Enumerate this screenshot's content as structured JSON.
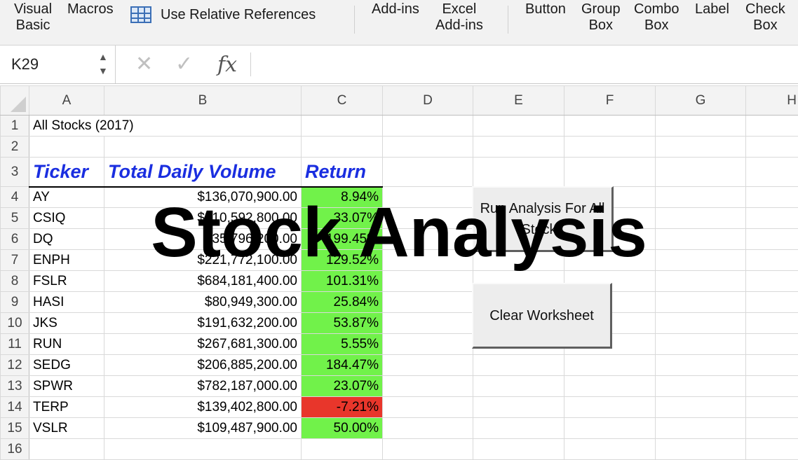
{
  "ribbon": {
    "visual_basic_line1": "Visual",
    "visual_basic_line2": "Basic",
    "macros": "Macros",
    "relative_references": "Use Relative References",
    "addins": "Add-ins",
    "excel_addins_line1": "Excel",
    "excel_addins_line2": "Add-ins",
    "button": "Button",
    "group_box_line1": "Group",
    "group_box_line2": "Box",
    "combo_box_line1": "Combo",
    "combo_box_line2": "Box",
    "label": "Label",
    "check_box_line1": "Check",
    "check_box_line2": "Box"
  },
  "formula_bar": {
    "name_box": "K29",
    "name_box_arrows_up": "▲",
    "name_box_arrows_down": "▼",
    "cancel_icon": "✕",
    "confirm_icon": "✓",
    "fx_label": "fx",
    "formula": ""
  },
  "columns": [
    "A",
    "B",
    "C",
    "D",
    "E",
    "F",
    "G",
    "H"
  ],
  "sheet": {
    "a1": "All Stocks (2017)",
    "headers": {
      "ticker": "Ticker",
      "volume": "Total Daily Volume",
      "return": "Return"
    },
    "rows": [
      {
        "row": "4",
        "ticker": "AY",
        "volume": "$136,070,900.00",
        "ret": "8.94%",
        "status": "positive"
      },
      {
        "row": "5",
        "ticker": "CSIQ",
        "volume": "$310,592,800.00",
        "ret": "33.07%",
        "status": "positive"
      },
      {
        "row": "6",
        "ticker": "DQ",
        "volume": "$35,796,200.00",
        "ret": "199.45%",
        "status": "positive"
      },
      {
        "row": "7",
        "ticker": "ENPH",
        "volume": "$221,772,100.00",
        "ret": "129.52%",
        "status": "positive"
      },
      {
        "row": "8",
        "ticker": "FSLR",
        "volume": "$684,181,400.00",
        "ret": "101.31%",
        "status": "positive"
      },
      {
        "row": "9",
        "ticker": "HASI",
        "volume": "$80,949,300.00",
        "ret": "25.84%",
        "status": "positive"
      },
      {
        "row": "10",
        "ticker": "JKS",
        "volume": "$191,632,200.00",
        "ret": "53.87%",
        "status": "positive"
      },
      {
        "row": "11",
        "ticker": "RUN",
        "volume": "$267,681,300.00",
        "ret": "5.55%",
        "status": "positive"
      },
      {
        "row": "12",
        "ticker": "SEDG",
        "volume": "$206,885,200.00",
        "ret": "184.47%",
        "status": "positive"
      },
      {
        "row": "13",
        "ticker": "SPWR",
        "volume": "$782,187,000.00",
        "ret": "23.07%",
        "status": "positive"
      },
      {
        "row": "14",
        "ticker": "TERP",
        "volume": "$139,402,800.00",
        "ret": "-7.21%",
        "status": "negative"
      },
      {
        "row": "15",
        "ticker": "VSLR",
        "volume": "$109,487,900.00",
        "ret": "50.00%",
        "status": "positive"
      }
    ],
    "row_numbers_top": [
      "1",
      "2",
      "3"
    ],
    "row_number_last": "16"
  },
  "buttons": {
    "run_analysis": "Run Analysis For All Stocks",
    "clear_worksheet": "Clear Worksheet"
  },
  "overlay_title": "Stock Analysis",
  "colors": {
    "positive_fill": "#71f24a",
    "negative_fill": "#e8362b",
    "header_text": "#1a2ee0"
  }
}
